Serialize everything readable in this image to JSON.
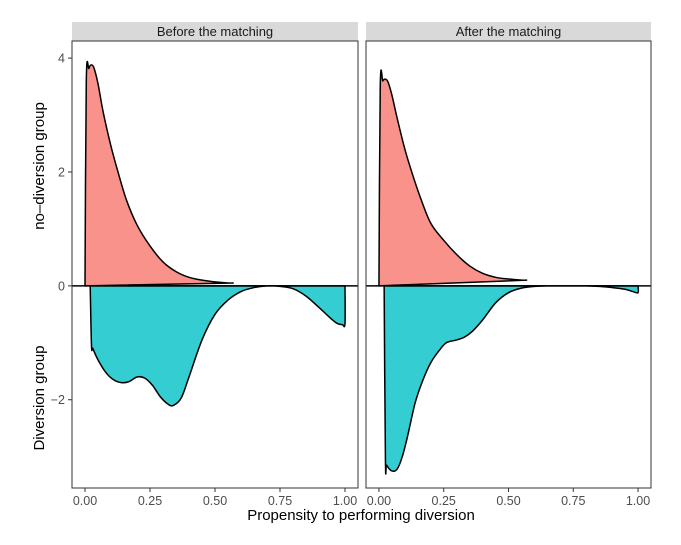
{
  "chart_data": {
    "type": "area",
    "subtype": "mirrored-density",
    "xlabel": "Propensity to performing diversion",
    "ylabel_top": "no–diversion  group",
    "ylabel_bottom": "Diversion group",
    "xlim": [
      -0.05,
      1.05
    ],
    "ylim": [
      -3.55,
      4.3
    ],
    "x_ticks": [
      0,
      0.25,
      0.5,
      0.75,
      1
    ],
    "x_tick_labels": [
      "0.00",
      "0.25",
      "0.50",
      "0.75",
      "1.00"
    ],
    "y_ticks": [
      4,
      2,
      0,
      -2
    ],
    "y_tick_labels": [
      "4",
      "2",
      "0",
      "−2"
    ],
    "grid": false,
    "colors": {
      "top_fill": "#F8928B",
      "bottom_fill": "#33CDD2",
      "line": "#000000",
      "strip_bg": "#D9D9D9"
    },
    "panels": [
      {
        "title": "Before the matching",
        "series": [
          {
            "name": "no-diversion group",
            "x": [
              0.0,
              0.005,
              0.015,
              0.025,
              0.035,
              0.05,
              0.07,
              0.1,
              0.13,
              0.16,
              0.2,
              0.25,
              0.3,
              0.35,
              0.4,
              0.45,
              0.5,
              0.55,
              0.57
            ],
            "y": [
              0.0,
              3.6,
              3.82,
              3.88,
              3.82,
              3.55,
              3.05,
              2.45,
              1.95,
              1.5,
              1.07,
              0.7,
              0.42,
              0.25,
              0.15,
              0.1,
              0.07,
              0.05,
              0.05
            ]
          },
          {
            "name": "Diversion group",
            "x": [
              0.02,
              0.025,
              0.03,
              0.05,
              0.08,
              0.11,
              0.14,
              0.17,
              0.2,
              0.23,
              0.26,
              0.29,
              0.32,
              0.34,
              0.37,
              0.4,
              0.45,
              0.5,
              0.55,
              0.6,
              0.65,
              0.7,
              0.75,
              0.8,
              0.85,
              0.9,
              0.94,
              0.97,
              0.99,
              1.0,
              1.0
            ],
            "y": [
              0.0,
              -1.05,
              -1.1,
              -1.3,
              -1.52,
              -1.65,
              -1.7,
              -1.68,
              -1.6,
              -1.62,
              -1.75,
              -1.95,
              -2.08,
              -2.1,
              -1.97,
              -1.6,
              -0.95,
              -0.5,
              -0.25,
              -0.1,
              -0.03,
              0.0,
              -0.01,
              -0.05,
              -0.18,
              -0.38,
              -0.55,
              -0.66,
              -0.68,
              -0.66,
              0.0
            ]
          }
        ]
      },
      {
        "title": "After the matching",
        "series": [
          {
            "name": "no-diversion group",
            "x": [
              0.0,
              0.005,
              0.015,
              0.025,
              0.035,
              0.05,
              0.07,
              0.1,
              0.13,
              0.16,
              0.2,
              0.25,
              0.3,
              0.35,
              0.4,
              0.45,
              0.5,
              0.55,
              0.57
            ],
            "y": [
              0.0,
              3.5,
              3.6,
              3.63,
              3.58,
              3.35,
              2.95,
              2.4,
              1.95,
              1.55,
              1.1,
              0.8,
              0.55,
              0.35,
              0.22,
              0.15,
              0.12,
              0.1,
              0.1
            ]
          },
          {
            "name": "Diversion group",
            "x": [
              0.02,
              0.025,
              0.03,
              0.05,
              0.07,
              0.09,
              0.11,
              0.14,
              0.17,
              0.2,
              0.23,
              0.26,
              0.3,
              0.33,
              0.36,
              0.4,
              0.45,
              0.5,
              0.55,
              0.6,
              0.65,
              0.7,
              0.75,
              0.8,
              0.85,
              0.9,
              0.95,
              0.98,
              1.0,
              1.0
            ],
            "y": [
              0.0,
              -3.05,
              -3.15,
              -3.25,
              -3.22,
              -3.0,
              -2.65,
              -2.05,
              -1.65,
              -1.35,
              -1.15,
              -1.0,
              -0.95,
              -0.9,
              -0.8,
              -0.6,
              -0.3,
              -0.12,
              -0.04,
              -0.01,
              0.0,
              0.0,
              0.0,
              0.0,
              -0.01,
              -0.03,
              -0.06,
              -0.1,
              -0.12,
              0.0
            ]
          }
        ]
      }
    ]
  }
}
